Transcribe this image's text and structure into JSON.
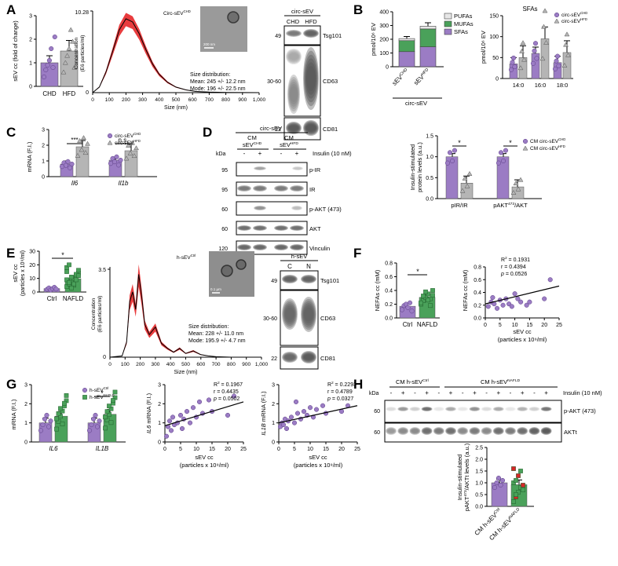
{
  "colors": {
    "purple": "#9b7cc4",
    "purple_dark": "#7d5aa8",
    "green": "#4aa15a",
    "green_dark": "#2e7d3e",
    "grey": "#b5b5b5",
    "pufa": "#e6e6e6",
    "red": "#e41a1c"
  },
  "panel_letters": [
    "A",
    "B",
    "C",
    "D",
    "E",
    "F",
    "G",
    "H"
  ],
  "chart_data": [
    {
      "id": "A1",
      "type": "bar",
      "ylabel": "sEV cc (fold of change)",
      "categories": [
        "CHD",
        "HFD"
      ],
      "values": [
        1.0,
        1.5
      ],
      "errors": [
        0.3,
        0.45
      ],
      "ylim": [
        0,
        3
      ],
      "yticks": [
        "0",
        "1",
        "2",
        "3"
      ],
      "points": [
        [
          0.4,
          0.7,
          0.9,
          1.1,
          1.6,
          0.8,
          2.1
        ],
        [
          0.6,
          1.0,
          1.3,
          1.6,
          2.4,
          1.9,
          0.8
        ]
      ]
    },
    {
      "id": "A2",
      "type": "line",
      "title": "Circ-sEV",
      "title_sup": "CHD",
      "xlabel": "Size (nm)",
      "ylabel": "Concentration (E6 particles/ml)",
      "ylim": [
        0,
        10.28
      ],
      "y_top_tick": "10.28",
      "xlim": [
        0,
        1000
      ],
      "xticks": [
        "0",
        "100",
        "200",
        "300",
        "400",
        "500",
        "600",
        "700",
        "800",
        "900",
        "1,000"
      ],
      "curve": {
        "x": [
          0,
          40,
          80,
          120,
          160,
          200,
          240,
          280,
          320,
          360,
          400,
          450,
          500,
          560,
          620,
          700,
          800,
          900,
          1000
        ],
        "y": [
          0,
          0.7,
          2.6,
          5.2,
          7.9,
          9.3,
          8.9,
          7.4,
          5.4,
          3.6,
          2.3,
          1.3,
          0.7,
          0.35,
          0.15,
          0.07,
          0.03,
          0.01,
          0
        ]
      },
      "annotation_title": "Size distribution:",
      "annotation_lines": [
        "Mean: 245 +/- 12.2 nm",
        "Mode: 196 +/- 22.5 nm"
      ],
      "scale_bar": "200 nm"
    },
    {
      "id": "A3",
      "type": "blot",
      "header": "circ-sEV",
      "lanes": [
        "CHD",
        "HFD"
      ],
      "rows": [
        {
          "kda": "49",
          "label": "Tsg101"
        },
        {
          "kda": "30-60",
          "label": "CD63"
        },
        {
          "kda": "22",
          "label": "CD81"
        }
      ]
    },
    {
      "id": "B1",
      "type": "bar",
      "ylabel": "pmol/10⁶ EV",
      "categories": [
        "sEV CHD",
        "sEV HFD"
      ],
      "cat_main": "sEV",
      "cat_sups": [
        "CHD",
        "HFD"
      ],
      "group_label": "circ-sEV",
      "legend": [
        "PUFAs",
        "MUFAs",
        "SFAs"
      ],
      "stacks": [
        [
          110,
          80,
          15
        ],
        [
          145,
          130,
          20
        ]
      ],
      "errors": [
        15,
        25
      ],
      "ylim": [
        0,
        400
      ],
      "yticks": [
        "0",
        "100",
        "200",
        "300",
        "400"
      ]
    },
    {
      "id": "B2",
      "type": "bar",
      "title": "SFAs",
      "ylabel": "pmol/10⁶ EV",
      "categories": [
        "14:0",
        "16:0",
        "18:0"
      ],
      "series": [
        {
          "name": "circ-sEV CHD",
          "values": [
            35,
            60,
            38
          ]
        },
        {
          "name": "circ-sEV HFD",
          "values": [
            50,
            95,
            62
          ]
        }
      ],
      "legend_main": "circ-sEV",
      "legend_sups": [
        "CHD",
        "HFD"
      ],
      "ylim": [
        0,
        150
      ],
      "yticks": [
        "0",
        "50",
        "100",
        "150"
      ]
    },
    {
      "id": "C",
      "type": "bar",
      "ylabel": "mRNA (F.I.)",
      "categories": [
        "Il6",
        "Il1b"
      ],
      "series": [
        {
          "name": "circ-sEV CHD",
          "values": [
            0.8,
            1.05
          ]
        },
        {
          "name": "circ-sEV HFD",
          "values": [
            1.9,
            1.65
          ]
        }
      ],
      "legend_main": "circ-sEV",
      "legend_sups": [
        "CHD",
        "HFD"
      ],
      "significance": [
        "***",
        "n.s."
      ],
      "ylim": [
        0,
        3
      ],
      "yticks": [
        "0",
        "1",
        "2",
        "3"
      ]
    },
    {
      "id": "D1",
      "type": "blot",
      "header": "circ-sEV",
      "groups": [
        "CM sEV CHD",
        "CM sEV HFD"
      ],
      "group_main": [
        "CM",
        "CM"
      ],
      "group_sub": [
        "sEV",
        "sEV"
      ],
      "group_sups": [
        "CHD",
        "HFD"
      ],
      "kda_label": "kDa",
      "treatment": "Insulin (10 nM)",
      "signs": [
        "-",
        "+",
        "-",
        "+"
      ],
      "rows": [
        {
          "kda": "95",
          "label": "p-IR"
        },
        {
          "kda": "95",
          "label": "IR"
        },
        {
          "kda": "60",
          "label": "p-AKT (473)"
        },
        {
          "kda": "60",
          "label": "AKT"
        },
        {
          "kda": "120",
          "label": "Vinculin"
        }
      ]
    },
    {
      "id": "D2",
      "type": "bar",
      "ylabel": "Insulin-stimulated protein levels (a.u.)",
      "categories": [
        "pIR/IR",
        "pAKT473/AKT"
      ],
      "cat_labels": [
        "pIR/IR",
        "pAKT",
        "/AKT"
      ],
      "cat_sup": "473",
      "series": [
        {
          "name": "CM circ-sEV CHD",
          "values": [
            1.0,
            1.0
          ]
        },
        {
          "name": "CM circ-sEV HFD",
          "values": [
            0.37,
            0.28
          ]
        }
      ],
      "legend_main": "CM circ-sEV",
      "legend_sups": [
        "CHD",
        "HFD"
      ],
      "significance": [
        "*",
        "*"
      ],
      "ylim": [
        0,
        1.5
      ],
      "yticks": [
        "0.0",
        "0.5",
        "1.0",
        "1.5"
      ]
    },
    {
      "id": "E1",
      "type": "bar",
      "ylabel": "sEV cc (particles x 10⁹/ml)",
      "categories": [
        "Ctrl",
        "NAFLD"
      ],
      "values": [
        2.5,
        9.8
      ],
      "errors": [
        0.8,
        1.5
      ],
      "significance": [
        "*"
      ],
      "ylim": [
        0,
        30
      ],
      "yticks": [
        "0",
        "10",
        "20",
        "30"
      ]
    },
    {
      "id": "E2",
      "type": "line",
      "title": "h-sEV",
      "title_sup": "Ctrl",
      "xlabel": "Size (nm)",
      "ylabel": "Concentration (E6 particles/ml)",
      "ylim": [
        0,
        3.5
      ],
      "y_top_tick": "3.5",
      "xlim": [
        0,
        1000
      ],
      "xticks": [
        "0",
        "100",
        "200",
        "300",
        "400",
        "500",
        "600",
        "700",
        "800",
        "900",
        "1,000"
      ],
      "curve": {
        "x": [
          0,
          80,
          110,
          130,
          150,
          170,
          190,
          210,
          230,
          260,
          300,
          340,
          380,
          420,
          460,
          500,
          550,
          600,
          650,
          700,
          800,
          1000
        ],
        "y": [
          0,
          0.05,
          0.6,
          2.2,
          2.6,
          1.9,
          3.3,
          2.4,
          1.3,
          0.9,
          1.2,
          0.55,
          0.35,
          0.2,
          0.35,
          0.15,
          0.25,
          0.1,
          0.05,
          0.02,
          0,
          0
        ]
      },
      "annotation_title": "Size distribution:",
      "annotation_lines": [
        "Mean: 228 +/- 11.0 nm",
        "Mode: 195.9 +/- 4.7 nm"
      ],
      "scale_bar": "0.1 µm"
    },
    {
      "id": "E3",
      "type": "blot",
      "header": "h-sEV",
      "lanes": [
        "C",
        "N"
      ],
      "rows": [
        {
          "kda": "49",
          "label": "Tsg101"
        },
        {
          "kda": "30-60",
          "label": "CD63"
        },
        {
          "kda": "22",
          "label": "CD81"
        }
      ]
    },
    {
      "id": "F1",
      "type": "bar",
      "ylabel": "NEFAs cc (mM)",
      "categories": [
        "Ctrl",
        "NAFLD"
      ],
      "values": [
        0.17,
        0.3
      ],
      "errors": [
        0.03,
        0.04
      ],
      "significance": [
        "*"
      ],
      "ylim": [
        0,
        0.8
      ],
      "yticks": [
        "0.0",
        "0.2",
        "0.4",
        "0.6",
        "0.8"
      ]
    },
    {
      "id": "F2",
      "type": "scatter",
      "ylabel": "NEFAs cc (mM)",
      "xlabel": "sEV cc",
      "xlabel2": "(particles x 10⁹/ml)",
      "stats": [
        "R² = 0.1931",
        "r = 0.4394",
        "p = 0.0526"
      ],
      "stats_parts": [
        [
          "R",
          "2",
          " = 0.1931"
        ],
        [
          "r = 0.4394"
        ],
        [
          "p",
          " = 0.0526"
        ]
      ],
      "xlim": [
        0,
        25
      ],
      "ylim": [
        0,
        0.8
      ],
      "xticks": [
        "0",
        "5",
        "10",
        "15",
        "20",
        "25"
      ],
      "yticks": [
        "0.0",
        "0.2",
        "0.4",
        "0.6",
        "0.8"
      ],
      "points": [
        [
          1,
          0.18
        ],
        [
          2,
          0.25
        ],
        [
          2.5,
          0.32
        ],
        [
          3,
          0.22
        ],
        [
          4,
          0.15
        ],
        [
          5,
          0.28
        ],
        [
          6,
          0.2
        ],
        [
          7,
          0.3
        ],
        [
          8,
          0.22
        ],
        [
          9,
          0.18
        ],
        [
          10,
          0.38
        ],
        [
          11,
          0.3
        ],
        [
          12,
          0.25
        ],
        [
          14,
          0.2
        ],
        [
          15,
          0.25
        ],
        [
          20,
          0.3
        ],
        [
          22,
          0.6
        ]
      ],
      "fit": [
        [
          0,
          0.22
        ],
        [
          25,
          0.5
        ]
      ]
    },
    {
      "id": "G1",
      "type": "bar",
      "ylabel": "mRNA (F.I.)",
      "categories": [
        "IL6",
        "IL1B"
      ],
      "series": [
        {
          "name": "h-sEV Ctrl",
          "values": [
            1.0,
            1.0
          ]
        },
        {
          "name": "h-sEV NAFLD",
          "values": [
            1.35,
            1.45
          ]
        }
      ],
      "legend_main": "h-sEV",
      "legend_sups": [
        "Ctrl",
        "NAFLD"
      ],
      "significance": [
        "",
        "*"
      ],
      "ylim": [
        0,
        3
      ],
      "yticks": [
        "0",
        "1",
        "2",
        "3"
      ]
    },
    {
      "id": "G2",
      "type": "scatter",
      "ylabel": "IL6 mRNA (F.I.)",
      "ylabel_parts": [
        "IL6",
        " mRNA (F.I.)"
      ],
      "xlabel": "sEV cc",
      "xlabel2": "(particles x 10⁹/ml)",
      "stats": [
        "R² = 0.1967",
        "r = 0.4435",
        "p = 0.0502"
      ],
      "stats_parts": [
        [
          "R",
          "2",
          " = 0.1967"
        ],
        [
          "r = 0.4435"
        ],
        [
          "p",
          " = 0.0502"
        ]
      ],
      "xlim": [
        0,
        25
      ],
      "ylim": [
        0,
        3
      ],
      "xticks": [
        "0",
        "5",
        "10",
        "15",
        "20",
        "25"
      ],
      "yticks": [
        "0",
        "1",
        "2",
        "3"
      ],
      "points": [
        [
          0.5,
          0.3
        ],
        [
          1,
          0.8
        ],
        [
          1.5,
          1.1
        ],
        [
          2,
          0.6
        ],
        [
          2.5,
          1.3
        ],
        [
          3,
          0.9
        ],
        [
          4,
          1.0
        ],
        [
          5,
          1.4
        ],
        [
          5.5,
          0.7
        ],
        [
          6,
          1.2
        ],
        [
          7,
          1.6
        ],
        [
          8,
          1.0
        ],
        [
          9,
          1.8
        ],
        [
          10,
          1.3
        ],
        [
          11,
          2.1
        ],
        [
          12,
          1.5
        ],
        [
          14,
          2.2
        ],
        [
          15,
          1.6
        ],
        [
          20,
          1.4
        ],
        [
          22,
          2.4
        ]
      ],
      "fit": [
        [
          0,
          0.85
        ],
        [
          25,
          2.1
        ]
      ]
    },
    {
      "id": "G3",
      "type": "scatter",
      "ylabel": "IL1B mRNA (F.I.)",
      "ylabel_parts": [
        "IL1B",
        " mRNA (F.I.)"
      ],
      "xlabel": "sEV cc",
      "xlabel2": "(particles x 10⁹/ml)",
      "stats": [
        "R² = 0.2293",
        "r = 0.4789",
        "p = 0.0327"
      ],
      "stats_parts": [
        [
          "R",
          "2",
          " = 0.2293"
        ],
        [
          "r = 0.4789"
        ],
        [
          "p",
          " = 0.0327"
        ]
      ],
      "xlim": [
        0,
        25
      ],
      "ylim": [
        0,
        3
      ],
      "xticks": [
        "0",
        "5",
        "10",
        "15",
        "20",
        "25"
      ],
      "yticks": [
        "0",
        "1",
        "2",
        "3"
      ],
      "points": [
        [
          0.5,
          0.8
        ],
        [
          1,
          1.0
        ],
        [
          1.5,
          0.9
        ],
        [
          2,
          1.2
        ],
        [
          2.5,
          0.7
        ],
        [
          3,
          1.1
        ],
        [
          4,
          1.3
        ],
        [
          5,
          1.0
        ],
        [
          6,
          1.5
        ],
        [
          7,
          1.2
        ],
        [
          8,
          1.6
        ],
        [
          9,
          1.4
        ],
        [
          10,
          1.8
        ],
        [
          11,
          1.3
        ],
        [
          12,
          1.7
        ],
        [
          14,
          1.9
        ],
        [
          15,
          1.5
        ],
        [
          20,
          1.6
        ],
        [
          22,
          1.9
        ],
        [
          5.5,
          2.1
        ]
      ],
      "fit": [
        [
          0,
          1.0
        ],
        [
          25,
          1.9
        ]
      ]
    },
    {
      "id": "H1",
      "type": "blot",
      "groups": [
        "CM h-sEV Ctrl",
        "CM h-sEV NAFLD"
      ],
      "group_main": [
        "CM h-sEV",
        "CM h-sEV"
      ],
      "group_sups": [
        "Ctrl",
        "NAFLD"
      ],
      "kda_label": "kDa",
      "treatment": "Insulin (10 nM)",
      "signs": [
        "-",
        "+",
        "-",
        "+",
        "-",
        "+",
        "-",
        "+",
        "-",
        "+",
        "-",
        "+",
        "-",
        "+"
      ],
      "rows": [
        {
          "kda": "60",
          "label": "p-AKT (473)"
        },
        {
          "kda": "60",
          "label": "AKTt"
        }
      ]
    },
    {
      "id": "H2",
      "type": "bar",
      "ylabel": "Insulin-stimulated pAKT473/AKTt levels (a.u.)",
      "ylabel_parts": [
        "Insulin-stimulated",
        "pAKT",
        "473",
        "/AKTt levels (a.u.)"
      ],
      "categories": [
        "CM h-sEV Ctrl",
        "CM h-sEV NAFLD"
      ],
      "cat_main": "CM h-sEV",
      "cat_sups": [
        "Ctrl",
        "NAFLD"
      ],
      "values": [
        1.0,
        0.92
      ],
      "errors": [
        0.15,
        0.2
      ],
      "ylim": [
        0,
        2.5
      ],
      "yticks": [
        "0.0",
        "0.5",
        "1.0",
        "1.5",
        "2.0",
        "2.5"
      ]
    }
  ]
}
